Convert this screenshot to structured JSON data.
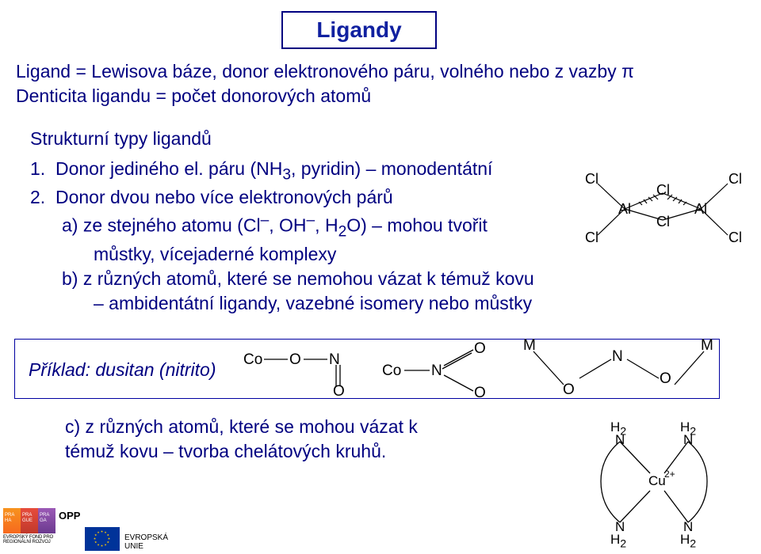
{
  "title": "Ligandy",
  "intro": {
    "ln1": "Ligand = Lewisova báze, donor elektronového páru, volného nebo z vazby π",
    "ln2": "Denticita ligandu = počet donorových atomů"
  },
  "intro2": "Strukturní typy ligandů",
  "item1_pre": "1.  Donor jediného el. páru (NH",
  "item1_sub": "3",
  "item1_post": ", pyridin) – monodentátní",
  "item2": "2.  Donor dvou nebo více elektronových párů",
  "item2a_pre": "a) ze stejného atomu (Cl",
  "item2a_sup1": "–",
  "item2a_mid": ", OH",
  "item2a_sup2": "–",
  "item2a_mid2": ", H",
  "item2a_sub": "2",
  "item2a_post": "O) – mohou tvořit",
  "item2a_line2": "můstky, vícejaderné komplexy",
  "item2b": "b) z různých atomů, které se nemohou vázat k témuž kovu",
  "item2b2": "– ambidentátní ligandy, vazebné isomery nebo můstky",
  "example_label": "Příklad: dusitan (nitrito)",
  "item2c_ln1": "c) z různých atomů, které se mohou vázat k",
  "item2c_ln2": "témuž kovu – tvorba chelátových kruhů.",
  "al2cl6": {
    "Cl": "Cl",
    "Al": "Al",
    "stroke": "#000000",
    "font_size": 18
  },
  "nitrito": {
    "Co": "Co",
    "O": "O",
    "N": "N",
    "M": "M",
    "stroke": "#000000"
  },
  "cu": {
    "N": "N",
    "Cu": "Cu",
    "H2": "H",
    "sub2": "2",
    "charge": "2+",
    "stroke": "#000000"
  },
  "footer": {
    "opp_side": "OPP",
    "opp_bottom": "EVROPSKÝ FOND PRO REGIONÁLNÍ ROZVOJ",
    "praha_pg1": "PRA\nHA\nPRA\nGUE\nPRA\nGA\nPRAG",
    "eu1": "EVROPSKÁ",
    "eu2": "UNIE"
  }
}
